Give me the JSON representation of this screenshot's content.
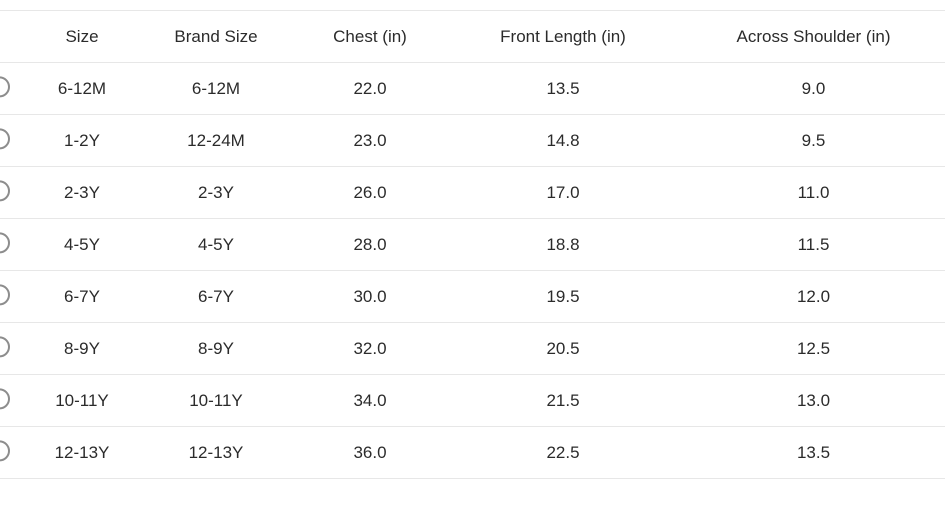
{
  "size_chart": {
    "columns": {
      "size": "Size",
      "brand_size": "Brand Size",
      "chest": "Chest (in)",
      "front_length": "Front Length (in)",
      "across_shoulder": "Across Shoulder (in)"
    },
    "rows": [
      {
        "size": "6-12M",
        "brand_size": "6-12M",
        "chest": "22.0",
        "front_length": "13.5",
        "across_shoulder": "9.0",
        "selected": false
      },
      {
        "size": "1-2Y",
        "brand_size": "12-24M",
        "chest": "23.0",
        "front_length": "14.8",
        "across_shoulder": "9.5",
        "selected": false
      },
      {
        "size": "2-3Y",
        "brand_size": "2-3Y",
        "chest": "26.0",
        "front_length": "17.0",
        "across_shoulder": "11.0",
        "selected": false
      },
      {
        "size": "4-5Y",
        "brand_size": "4-5Y",
        "chest": "28.0",
        "front_length": "18.8",
        "across_shoulder": "11.5",
        "selected": false
      },
      {
        "size": "6-7Y",
        "brand_size": "6-7Y",
        "chest": "30.0",
        "front_length": "19.5",
        "across_shoulder": "12.0",
        "selected": false
      },
      {
        "size": "8-9Y",
        "brand_size": "8-9Y",
        "chest": "32.0",
        "front_length": "20.5",
        "across_shoulder": "12.5",
        "selected": false
      },
      {
        "size": "10-11Y",
        "brand_size": "10-11Y",
        "chest": "34.0",
        "front_length": "21.5",
        "across_shoulder": "13.0",
        "selected": false
      },
      {
        "size": "12-13Y",
        "brand_size": "12-13Y",
        "chest": "36.0",
        "front_length": "22.5",
        "across_shoulder": "13.5",
        "selected": false
      }
    ],
    "colors": {
      "text": "#2b2b2b",
      "separator": "#e7e7e7",
      "radio_border": "#8d8d8d",
      "background": "#ffffff"
    }
  }
}
